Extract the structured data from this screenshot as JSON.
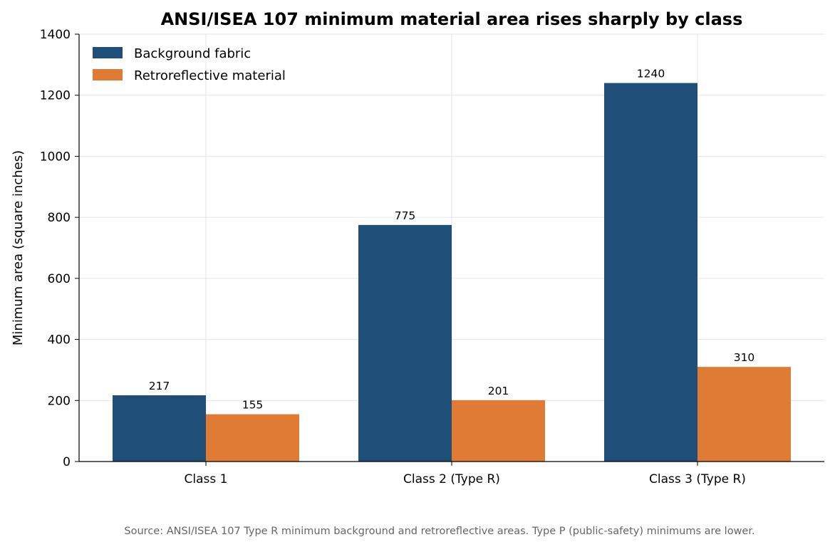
{
  "chart_data": {
    "type": "bar",
    "title": "ANSI/ISEA 107 minimum material area rises sharply by class",
    "xlabel": "",
    "ylabel": "Minimum area (square inches)",
    "ylim": [
      0,
      1400
    ],
    "yticks": [
      "0",
      "200",
      "400",
      "600",
      "800",
      "1000",
      "1200",
      "1400"
    ],
    "categories": [
      "Class 1",
      "Class 2 (Type R)",
      "Class 3 (Type R)"
    ],
    "series": [
      {
        "name": "Background fabric",
        "color": "#1f4e79",
        "values": [
          217,
          775,
          1240
        ]
      },
      {
        "name": "Retroreflective material",
        "color": "#e07b35",
        "values": [
          155,
          201,
          310
        ]
      }
    ],
    "grid": true,
    "legend_position": "top-left",
    "footnote": "Source: ANSI/ISEA 107 Type R minimum background and retroreflective areas. Type P (public-safety) minimums are lower."
  }
}
